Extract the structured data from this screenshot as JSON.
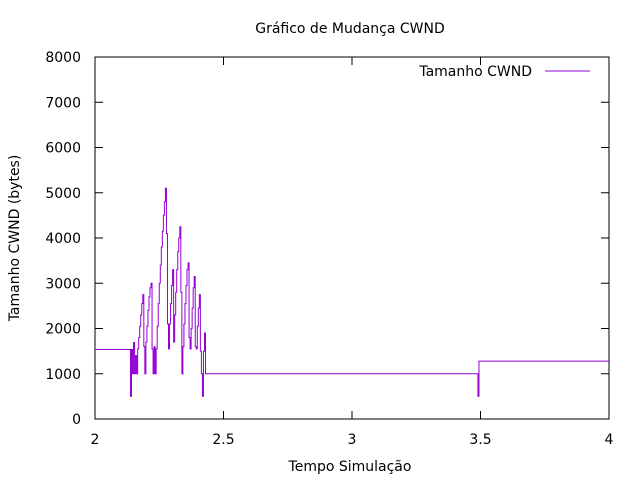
{
  "chart_data": {
    "type": "line",
    "title": "Gráfico de Mudança CWND",
    "xlabel": "Tempo Simulação",
    "ylabel": "Tamanho CWND (bytes)",
    "xlim": [
      2,
      4
    ],
    "ylim": [
      0,
      8000
    ],
    "xticks": [
      "2",
      "2.5",
      "3",
      "3.5",
      "4"
    ],
    "yticks": [
      "0",
      "1000",
      "2000",
      "3000",
      "4000",
      "5000",
      "6000",
      "7000",
      "8000"
    ],
    "grid": false,
    "legend_position": "top-right",
    "series": [
      {
        "name": "Tamanho CWND",
        "color": "#9400d3",
        "step": true,
        "points": [
          [
            2.0,
            1536
          ],
          [
            2.138,
            1536
          ],
          [
            2.138,
            500
          ],
          [
            2.142,
            500
          ],
          [
            2.142,
            1536
          ],
          [
            2.146,
            1000
          ],
          [
            2.15,
            1690
          ],
          [
            2.154,
            1000
          ],
          [
            2.158,
            1400
          ],
          [
            2.162,
            1000
          ],
          [
            2.166,
            1550
          ],
          [
            2.17,
            1800
          ],
          [
            2.174,
            2050
          ],
          [
            2.178,
            2300
          ],
          [
            2.182,
            2550
          ],
          [
            2.186,
            2750
          ],
          [
            2.19,
            1600
          ],
          [
            2.194,
            1000
          ],
          [
            2.198,
            1700
          ],
          [
            2.202,
            2050
          ],
          [
            2.206,
            2400
          ],
          [
            2.21,
            2700
          ],
          [
            2.214,
            2900
          ],
          [
            2.218,
            3000
          ],
          [
            2.222,
            1550
          ],
          [
            2.226,
            1000
          ],
          [
            2.23,
            1600
          ],
          [
            2.234,
            1000
          ],
          [
            2.238,
            1550
          ],
          [
            2.242,
            2050
          ],
          [
            2.246,
            2550
          ],
          [
            2.25,
            3000
          ],
          [
            2.254,
            3400
          ],
          [
            2.258,
            3800
          ],
          [
            2.262,
            4150
          ],
          [
            2.266,
            4500
          ],
          [
            2.27,
            4800
          ],
          [
            2.274,
            5100
          ],
          [
            2.278,
            4100
          ],
          [
            2.282,
            2100
          ],
          [
            2.286,
            1550
          ],
          [
            2.29,
            2100
          ],
          [
            2.294,
            2550
          ],
          [
            2.298,
            2950
          ],
          [
            2.302,
            3300
          ],
          [
            2.306,
            1700
          ],
          [
            2.31,
            2300
          ],
          [
            2.314,
            2800
          ],
          [
            2.318,
            3300
          ],
          [
            2.322,
            3700
          ],
          [
            2.326,
            4000
          ],
          [
            2.33,
            4250
          ],
          [
            2.334,
            2800
          ],
          [
            2.338,
            1000
          ],
          [
            2.342,
            1600
          ],
          [
            2.346,
            2100
          ],
          [
            2.35,
            2550
          ],
          [
            2.354,
            2950
          ],
          [
            2.358,
            3300
          ],
          [
            2.362,
            3450
          ],
          [
            2.366,
            1800
          ],
          [
            2.37,
            1550
          ],
          [
            2.374,
            2000
          ],
          [
            2.378,
            2450
          ],
          [
            2.382,
            2900
          ],
          [
            2.386,
            3150
          ],
          [
            2.39,
            1600
          ],
          [
            2.394,
            1550
          ],
          [
            2.398,
            2050
          ],
          [
            2.402,
            2450
          ],
          [
            2.406,
            2750
          ],
          [
            2.41,
            1500
          ],
          [
            2.414,
            1000
          ],
          [
            2.418,
            500
          ],
          [
            2.422,
            1500
          ],
          [
            2.426,
            1900
          ],
          [
            2.43,
            1000
          ],
          [
            2.49,
            1000
          ],
          [
            2.49,
            1000
          ],
          [
            3.49,
            1000
          ],
          [
            3.49,
            500
          ],
          [
            3.494,
            500
          ],
          [
            3.494,
            1280
          ],
          [
            4.0,
            1280
          ]
        ]
      }
    ]
  }
}
